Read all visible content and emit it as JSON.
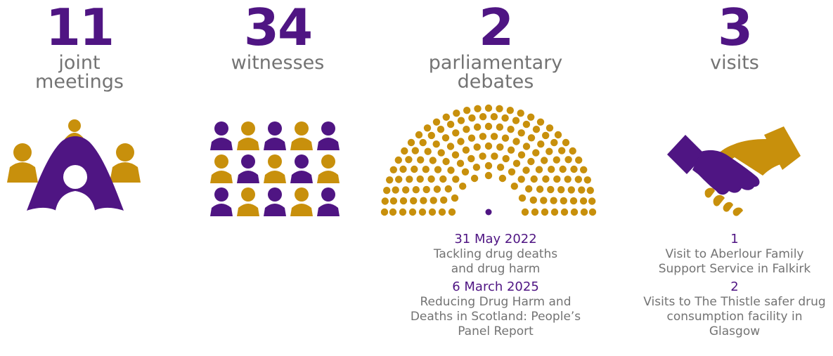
{
  "colors": {
    "purple": "#4f1583",
    "gold": "#c8900c",
    "grey": "#737373"
  },
  "stats": [
    {
      "value": "11",
      "label_lines": [
        "joint",
        "meetings"
      ],
      "icon": "meeting-table-icon"
    },
    {
      "value": "34",
      "label_lines": [
        "witnesses"
      ],
      "icon": "people-grid-icon"
    },
    {
      "value": "2",
      "label_lines": [
        "parliamentary",
        "debates"
      ],
      "icon": "parliament-chamber-icon"
    },
    {
      "value": "3",
      "label_lines": [
        "visits"
      ],
      "icon": "handshake-icon"
    }
  ],
  "debates": [
    {
      "date": "31 May 2022",
      "title_lines": [
        "Tackling drug deaths",
        "and drug harm"
      ]
    },
    {
      "date": "6 March 2025",
      "title_lines": [
        "Reducing Drug Harm and",
        "Deaths in Scotland: People’s",
        "Panel Report"
      ]
    }
  ],
  "visits": [
    {
      "count": "1",
      "text_lines": [
        "Visit to Aberlour Family",
        "Support Service in Falkirk"
      ]
    },
    {
      "count": "2",
      "text_lines": [
        "Visits to The Thistle safer drug",
        "consumption facility in",
        "Glasgow"
      ]
    }
  ]
}
